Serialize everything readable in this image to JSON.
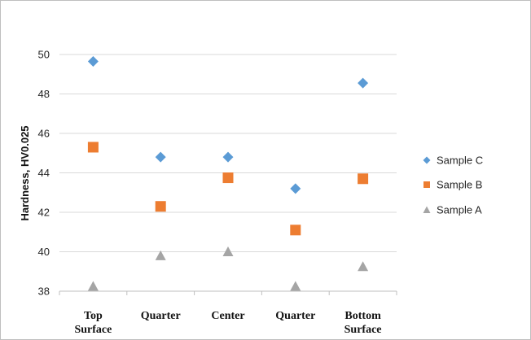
{
  "chart_data": {
    "type": "scatter",
    "title": "",
    "xlabel": "",
    "ylabel": "Hardness, HV0.025",
    "categories": [
      [
        "Top",
        "Surface"
      ],
      [
        "Quarter"
      ],
      [
        "Center"
      ],
      [
        "Quarter"
      ],
      [
        "Bottom",
        "Surface"
      ]
    ],
    "y_ticks": [
      "38",
      "40",
      "42",
      "44",
      "46",
      "48",
      "50"
    ],
    "ylim": [
      38,
      50
    ],
    "grid": true,
    "legend_position": "right",
    "series": [
      {
        "name": "Sample C",
        "marker": "diamond",
        "color": "#5b9bd5",
        "values": [
          49.65,
          44.8,
          44.8,
          43.2,
          48.55
        ]
      },
      {
        "name": "Sample B",
        "marker": "square",
        "color": "#ed7d31",
        "values": [
          45.3,
          42.3,
          43.75,
          41.1,
          43.7
        ]
      },
      {
        "name": "Sample A",
        "marker": "triangle",
        "color": "#a5a5a5",
        "values": [
          38.25,
          39.8,
          40.0,
          38.25,
          39.25
        ]
      }
    ]
  }
}
